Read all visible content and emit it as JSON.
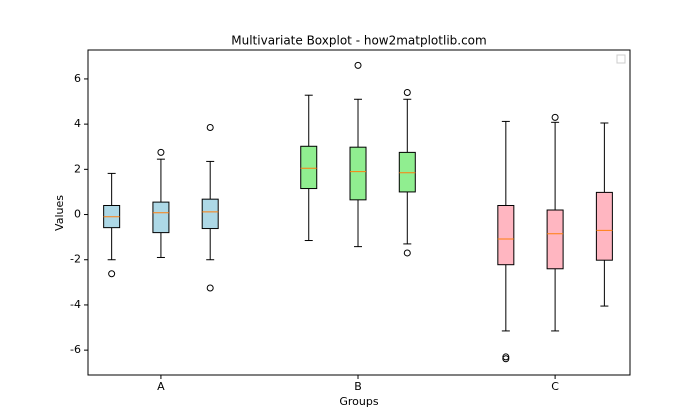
{
  "chart_data": {
    "type": "box",
    "title": "Multivariate Boxplot - how2matplotlib.com",
    "xlabel": "Groups",
    "ylabel": "Values",
    "xlim": [
      0.63,
      3.38
    ],
    "xticks": [
      {
        "value": 1,
        "label": "A"
      },
      {
        "value": 2,
        "label": "B"
      },
      {
        "value": 3,
        "label": "C"
      }
    ],
    "ylim": [
      -7.1,
      7.28
    ],
    "yticks": [
      -6,
      -4,
      -2,
      0,
      2,
      4,
      6
    ],
    "median_color": "#ff7f0e",
    "series": [
      {
        "color": "#add8e6",
        "boxes": [
          {
            "x": 0.75,
            "whislo": -2.0,
            "q1": -0.58,
            "med": -0.1,
            "q3": 0.4,
            "whishi": 1.82,
            "fliers": [
              -2.62
            ]
          },
          {
            "x": 1.0,
            "whislo": -1.9,
            "q1": -0.8,
            "med": 0.08,
            "q3": 0.55,
            "whishi": 2.45,
            "fliers": [
              2.75
            ]
          },
          {
            "x": 1.25,
            "whislo": -2.0,
            "q1": -0.62,
            "med": 0.12,
            "q3": 0.68,
            "whishi": 2.35,
            "fliers": [
              3.85,
              -3.25
            ]
          }
        ]
      },
      {
        "color": "#90ee90",
        "boxes": [
          {
            "x": 1.75,
            "whislo": -1.15,
            "q1": 1.15,
            "med": 2.05,
            "q3": 3.02,
            "whishi": 5.28,
            "fliers": []
          },
          {
            "x": 2.0,
            "whislo": -1.42,
            "q1": 0.65,
            "med": 1.9,
            "q3": 2.98,
            "whishi": 5.1,
            "fliers": [
              6.6
            ]
          },
          {
            "x": 2.25,
            "whislo": -1.3,
            "q1": 1.0,
            "med": 1.85,
            "q3": 2.75,
            "whishi": 5.1,
            "fliers": [
              5.4,
              -1.7
            ]
          }
        ]
      },
      {
        "color": "#ffb6c1",
        "boxes": [
          {
            "x": 2.75,
            "whislo": -5.15,
            "q1": -2.22,
            "med": -1.08,
            "q3": 0.4,
            "whishi": 4.12,
            "fliers": [
              -6.3,
              -6.38
            ]
          },
          {
            "x": 3.0,
            "whislo": -5.15,
            "q1": -2.4,
            "med": -0.85,
            "q3": 0.2,
            "whishi": 4.08,
            "fliers": [
              4.3
            ]
          },
          {
            "x": 3.25,
            "whislo": -4.05,
            "q1": -2.02,
            "med": -0.7,
            "q3": 0.98,
            "whishi": 4.05,
            "fliers": []
          }
        ]
      }
    ]
  }
}
